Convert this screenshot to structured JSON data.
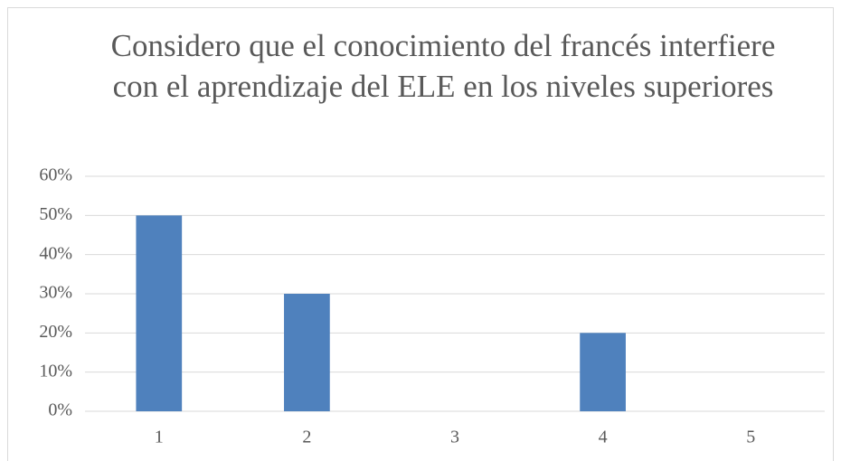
{
  "chart_data": {
    "type": "bar",
    "title": "Considero que el conocimiento del francés interfiere con el aprendizaje del ELE en los niveles superiores",
    "categories": [
      "1",
      "2",
      "3",
      "4",
      "5"
    ],
    "values": [
      50,
      30,
      0,
      20,
      0
    ],
    "color": "#4f81bd",
    "ylim": [
      0,
      60
    ],
    "yticks": [
      {
        "value": 0,
        "label": "0%"
      },
      {
        "value": 10,
        "label": "10%"
      },
      {
        "value": 20,
        "label": "20%"
      },
      {
        "value": 30,
        "label": "30%"
      },
      {
        "value": 40,
        "label": "40%"
      },
      {
        "value": 50,
        "label": "50%"
      },
      {
        "value": 60,
        "label": "60%"
      }
    ],
    "grid": true
  }
}
